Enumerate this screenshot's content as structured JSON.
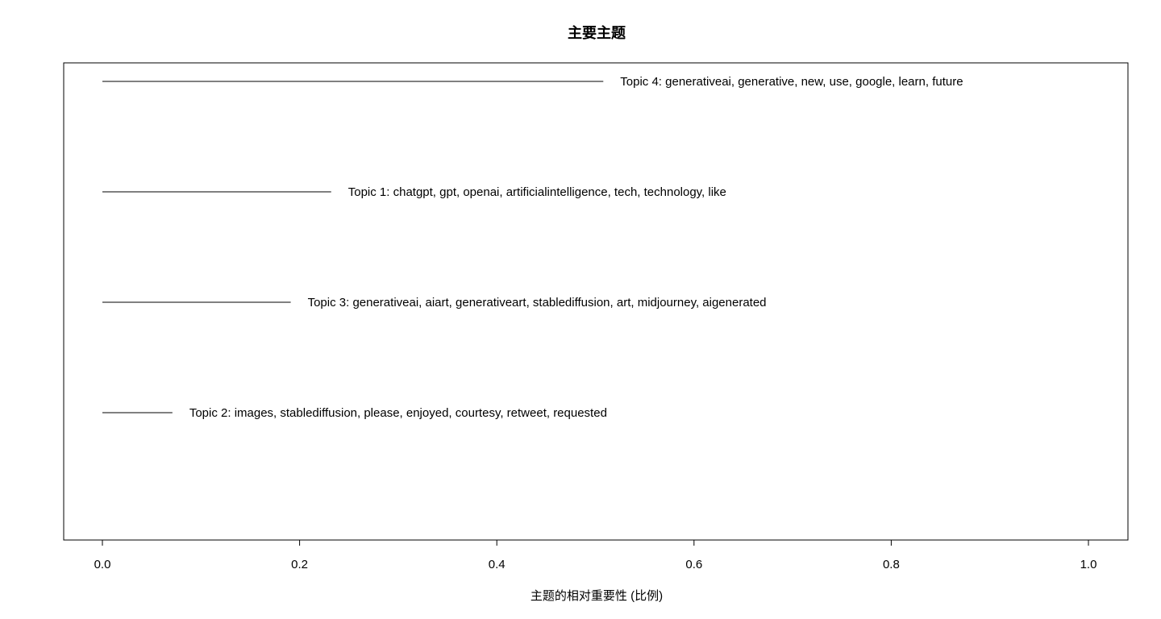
{
  "chart_data": {
    "type": "bar",
    "orientation": "horizontal",
    "title": "主要主题",
    "xlabel": "主题的相对重要性 (比例)",
    "ylabel": "",
    "xlim": [
      0,
      1
    ],
    "xticks": [
      0,
      0.2,
      0.4,
      0.6,
      0.8,
      1.0
    ],
    "xtick_labels": [
      "0.0",
      "0.2",
      "0.4",
      "0.6",
      "0.8",
      "1.0"
    ],
    "grid": false,
    "legend": "none",
    "categories": [
      "Topic 4: generativeai, generative, new, use, google, learn, future",
      "Topic 1: chatgpt, gpt, openai, artificialintelligence, tech, technology, like",
      "Topic 3: generativeai, aiart, generativeart, stablediffusion, art, midjourney, aigenerated",
      "Topic 2: images, stablediffusion, please, enjoyed, courtesy, retweet, requested"
    ],
    "values": [
      0.508,
      0.232,
      0.191,
      0.071
    ],
    "colors": {
      "line": "#000000",
      "background": "#ffffff"
    }
  }
}
